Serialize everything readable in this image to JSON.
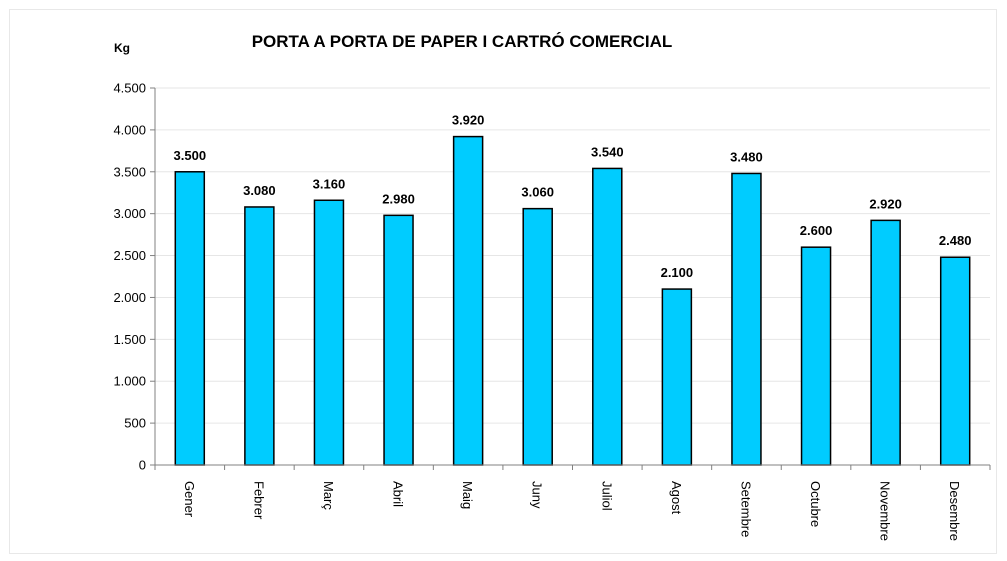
{
  "chart_data": {
    "type": "bar",
    "title": "PORTA A PORTA  DE PAPER I CARTRÓ COMERCIAL",
    "ylabel": "Kg",
    "xlabel": "",
    "categories": [
      "Gener",
      "Febrer",
      "Març",
      "Abril",
      "Maig",
      "Juny",
      "Juliol",
      "Agost",
      "Setembre",
      "Octubre",
      "Novembre",
      "Desembre"
    ],
    "values": [
      3500,
      3080,
      3160,
      2980,
      3920,
      3060,
      3540,
      2100,
      3480,
      2600,
      2920,
      2480
    ],
    "value_labels": [
      "3.500",
      "3.080",
      "3.160",
      "2.980",
      "3.920",
      "3.060",
      "3.540",
      "2.100",
      "3.480",
      "2.600",
      "2.920",
      "2.480"
    ],
    "ylim": [
      0,
      4500
    ],
    "yticks": [
      0,
      500,
      1000,
      1500,
      2000,
      2500,
      3000,
      3500,
      4000,
      4500
    ],
    "ytick_labels": [
      "0",
      "500",
      "1.000",
      "1.500",
      "2.000",
      "2.500",
      "3.000",
      "3.500",
      "4.000",
      "4.500"
    ],
    "grid": true,
    "legend": "none",
    "colors": {
      "bar_fill": "#00CCFF",
      "bar_stroke": "#000000",
      "grid": "#e6e6e6",
      "axis": "#808080"
    }
  }
}
